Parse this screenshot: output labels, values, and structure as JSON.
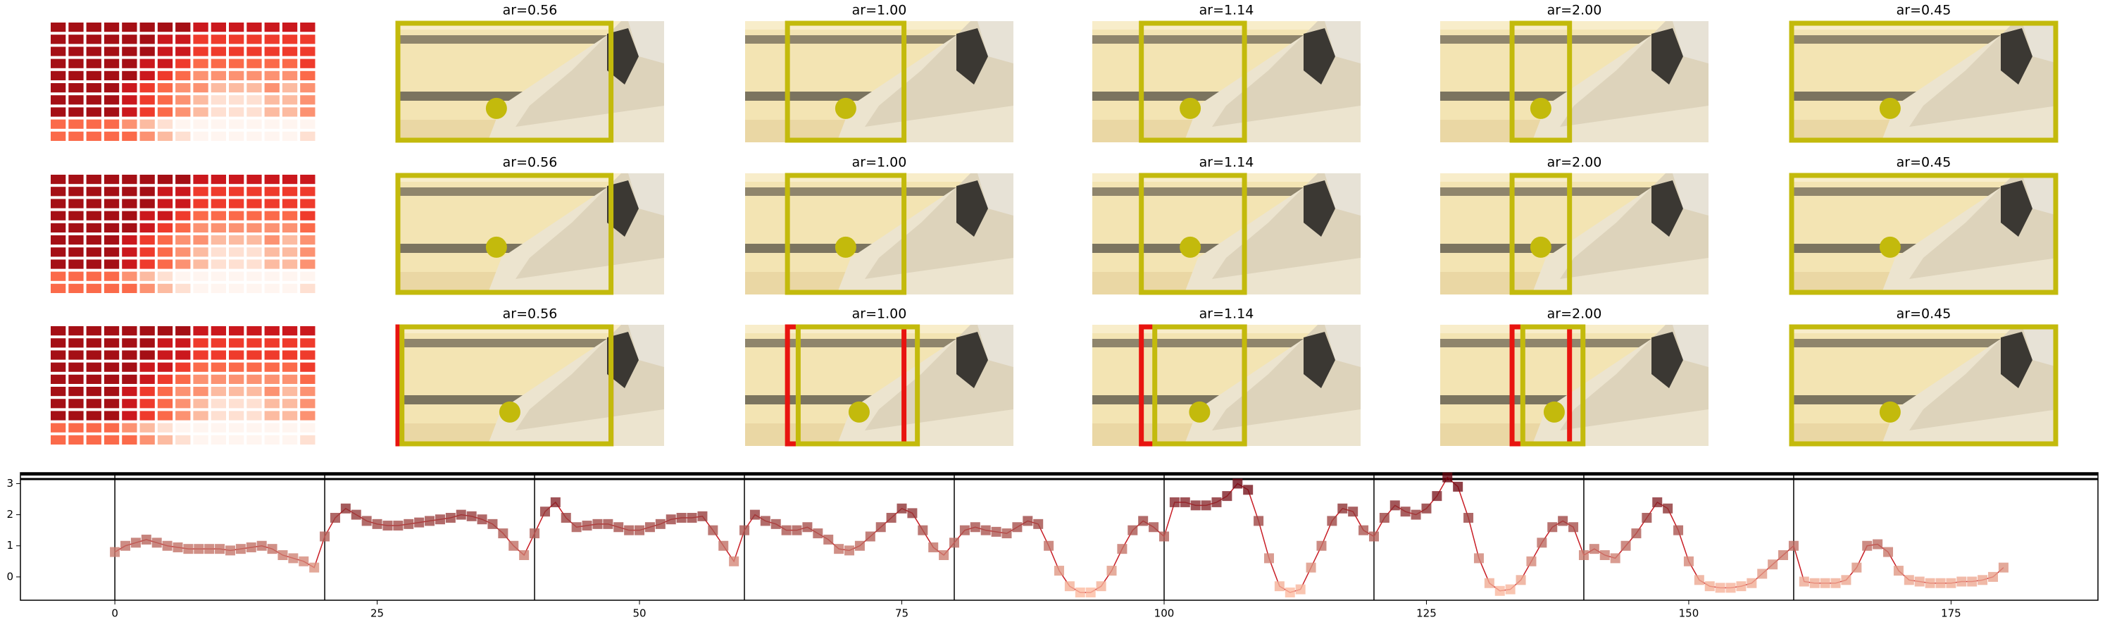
{
  "panels": {
    "rows": [
      {
        "titles": [
          "ar=0.56",
          "ar=1.00",
          "ar=1.14",
          "ar=2.00",
          "ar=0.45"
        ]
      },
      {
        "titles": [
          "ar=0.56",
          "ar=1.00",
          "ar=1.14",
          "ar=2.00",
          "ar=0.45"
        ]
      },
      {
        "titles": [
          "ar=0.56",
          "ar=1.00",
          "ar=1.14",
          "ar=2.00",
          "ar=0.45"
        ]
      }
    ]
  },
  "chart_data": {
    "type": "line",
    "x": [
      0,
      1,
      2,
      3,
      4,
      5,
      6,
      7,
      8,
      9,
      10,
      11,
      12,
      13,
      14,
      15,
      16,
      17,
      18,
      19,
      20,
      21,
      22,
      23,
      24,
      25,
      26,
      27,
      28,
      29,
      30,
      31,
      32,
      33,
      34,
      35,
      36,
      37,
      38,
      39,
      40,
      41,
      42,
      43,
      44,
      45,
      46,
      47,
      48,
      49,
      50,
      51,
      52,
      53,
      54,
      55,
      56,
      57,
      58,
      59,
      60,
      61,
      62,
      63,
      64,
      65,
      66,
      67,
      68,
      69,
      70,
      71,
      72,
      73,
      74,
      75,
      76,
      77,
      78,
      79,
      80,
      81,
      82,
      83,
      84,
      85,
      86,
      87,
      88,
      89,
      90,
      91,
      92,
      93,
      94,
      95,
      96,
      97,
      98,
      99,
      100,
      101,
      102,
      103,
      104,
      105,
      106,
      107,
      108,
      109,
      110,
      111,
      112,
      113,
      114,
      115,
      116,
      117,
      118,
      119,
      120,
      121,
      122,
      123,
      124,
      125,
      126,
      127,
      128,
      129,
      130,
      131,
      132,
      133,
      134,
      135,
      136,
      137,
      138,
      139,
      140,
      141,
      142,
      143,
      144,
      145,
      146,
      147,
      148,
      149,
      150,
      151,
      152,
      153,
      154,
      155,
      156,
      157,
      158,
      159,
      160,
      161,
      162,
      163,
      164,
      165,
      166,
      167,
      168,
      169,
      170,
      171,
      172,
      173,
      174,
      175,
      176,
      177,
      178,
      179,
      180
    ],
    "values": [
      0.8,
      1.0,
      1.1,
      1.2,
      1.1,
      1.0,
      0.95,
      0.9,
      0.9,
      0.9,
      0.9,
      0.85,
      0.9,
      0.95,
      1.0,
      0.9,
      0.7,
      0.6,
      0.5,
      0.3,
      1.3,
      1.9,
      2.2,
      2.0,
      1.8,
      1.7,
      1.65,
      1.65,
      1.7,
      1.75,
      1.8,
      1.85,
      1.9,
      2.0,
      1.95,
      1.85,
      1.7,
      1.4,
      1.0,
      0.7,
      1.4,
      2.1,
      2.4,
      1.9,
      1.6,
      1.65,
      1.7,
      1.7,
      1.6,
      1.5,
      1.5,
      1.6,
      1.7,
      1.85,
      1.9,
      1.9,
      1.95,
      1.5,
      1.0,
      0.5,
      1.5,
      2.0,
      1.8,
      1.7,
      1.5,
      1.5,
      1.6,
      1.4,
      1.2,
      0.9,
      0.85,
      1.0,
      1.3,
      1.6,
      1.9,
      2.2,
      2.05,
      1.5,
      0.95,
      0.7,
      1.1,
      1.5,
      1.6,
      1.5,
      1.45,
      1.4,
      1.6,
      1.8,
      1.7,
      1.0,
      0.2,
      -0.3,
      -0.5,
      -0.5,
      -0.3,
      0.2,
      0.9,
      1.5,
      1.8,
      1.6,
      1.3,
      2.4,
      2.4,
      2.3,
      2.3,
      2.4,
      2.6,
      3.0,
      2.8,
      1.8,
      0.6,
      -0.3,
      -0.5,
      -0.4,
      0.3,
      1.0,
      1.8,
      2.2,
      2.1,
      1.5,
      1.3,
      1.9,
      2.3,
      2.1,
      2.0,
      2.2,
      2.6,
      3.2,
      2.9,
      1.9,
      0.6,
      -0.2,
      -0.45,
      -0.4,
      -0.1,
      0.5,
      1.1,
      1.6,
      1.8,
      1.6,
      0.7,
      0.9,
      0.7,
      0.6,
      1.0,
      1.4,
      1.9,
      2.4,
      2.2,
      1.5,
      0.5,
      -0.1,
      -0.3,
      -0.35,
      -0.35,
      -0.3,
      -0.2,
      0.1,
      0.4,
      0.7,
      1.0,
      -0.15,
      -0.2,
      -0.2,
      -0.2,
      -0.1,
      0.3,
      1.0,
      1.05,
      0.8,
      0.2,
      -0.1,
      -0.15,
      -0.2,
      -0.2,
      -0.2,
      -0.15,
      -0.15,
      -0.1,
      0.0,
      0.3
    ],
    "color": "#c81d25",
    "vlines": [
      0,
      20,
      40,
      60,
      80,
      100,
      120,
      140,
      160
    ],
    "xlim": [
      -9,
      189
    ],
    "ylim": [
      -0.75,
      3.35
    ],
    "xticks": [
      0,
      25,
      50,
      75,
      100,
      125,
      150,
      175
    ],
    "yticks": [
      0,
      1,
      2,
      3
    ]
  }
}
